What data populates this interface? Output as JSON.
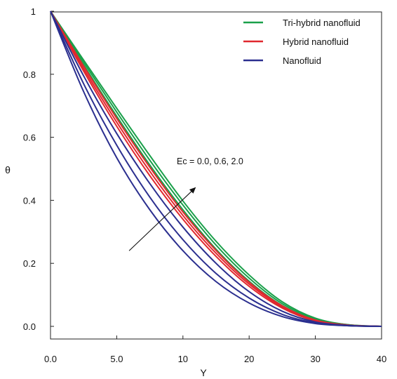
{
  "chart_data": {
    "type": "line",
    "title": "",
    "xlabel": "Y",
    "ylabel": "θ",
    "xlim": [
      0,
      40
    ],
    "ylim": [
      0,
      1
    ],
    "x_ticks": [
      {
        "value": 0,
        "label": "0.0"
      },
      {
        "value": 8,
        "label": "5.0"
      },
      {
        "value": 16,
        "label": "10"
      },
      {
        "value": 24,
        "label": "20"
      },
      {
        "value": 32,
        "label": "30"
      },
      {
        "value": 40,
        "label": "40"
      }
    ],
    "y_ticks": [
      {
        "value": 0,
        "label": "0.0"
      },
      {
        "value": 0.2,
        "label": "0.2"
      },
      {
        "value": 0.4,
        "label": "0.4"
      },
      {
        "value": 0.6,
        "label": "0.6"
      },
      {
        "value": 0.8,
        "label": "0.8"
      },
      {
        "value": 1,
        "label": "1"
      }
    ],
    "grid": false,
    "legend_position": "top-right",
    "legend": [
      {
        "label": "Tri-hybrid nanofluid",
        "color": "#1aa04a"
      },
      {
        "label": "Hybrid nanofluid",
        "color": "#e0282e"
      },
      {
        "label": "Nanofluid",
        "color": "#2b2f8f"
      }
    ],
    "annotation": {
      "text": "Ec = 0.0, 0.6, 2.0",
      "arrow_from": [
        9.5,
        0.24
      ],
      "arrow_to": [
        17.5,
        0.44
      ]
    },
    "x": [
      0,
      4,
      8,
      12,
      16,
      20,
      24,
      28,
      32,
      36,
      40
    ],
    "series": [
      {
        "group": "Tri-hybrid nanofluid",
        "Ec": 0.0,
        "color": "#1aa04a",
        "values": [
          1,
          0.83,
          0.667,
          0.512,
          0.37,
          0.245,
          0.143,
          0.066,
          0.02,
          0.004,
          0
        ]
      },
      {
        "group": "Tri-hybrid nanofluid",
        "Ec": 0.6,
        "color": "#1aa04a",
        "values": [
          1,
          0.838,
          0.68,
          0.527,
          0.385,
          0.258,
          0.153,
          0.072,
          0.023,
          0.005,
          0
        ]
      },
      {
        "group": "Tri-hybrid nanofluid",
        "Ec": 2.0,
        "color": "#1aa04a",
        "values": [
          1,
          0.845,
          0.692,
          0.542,
          0.398,
          0.27,
          0.163,
          0.078,
          0.026,
          0.005,
          0
        ]
      },
      {
        "group": "Hybrid nanofluid",
        "Ec": 0.0,
        "color": "#e0282e",
        "values": [
          1,
          0.81,
          0.635,
          0.478,
          0.34,
          0.222,
          0.127,
          0.058,
          0.017,
          0.003,
          0
        ]
      },
      {
        "group": "Hybrid nanofluid",
        "Ec": 0.6,
        "color": "#e0282e",
        "values": [
          1,
          0.818,
          0.648,
          0.492,
          0.352,
          0.232,
          0.134,
          0.062,
          0.019,
          0.004,
          0
        ]
      },
      {
        "group": "Hybrid nanofluid",
        "Ec": 2.0,
        "color": "#e0282e",
        "values": [
          1,
          0.826,
          0.66,
          0.505,
          0.363,
          0.241,
          0.14,
          0.065,
          0.02,
          0.004,
          0
        ]
      },
      {
        "group": "Nanofluid",
        "Ec": 0.0,
        "color": "#2b2f8f",
        "values": [
          1,
          0.745,
          0.535,
          0.37,
          0.24,
          0.142,
          0.074,
          0.031,
          0.009,
          0.002,
          0
        ]
      },
      {
        "group": "Nanofluid",
        "Ec": 0.6,
        "color": "#2b2f8f",
        "values": [
          1,
          0.77,
          0.575,
          0.41,
          0.275,
          0.168,
          0.09,
          0.038,
          0.011,
          0.002,
          0
        ]
      },
      {
        "group": "Nanofluid",
        "Ec": 2.0,
        "color": "#2b2f8f",
        "values": [
          1,
          0.795,
          0.612,
          0.453,
          0.315,
          0.2,
          0.11,
          0.048,
          0.014,
          0.003,
          0
        ]
      }
    ]
  }
}
